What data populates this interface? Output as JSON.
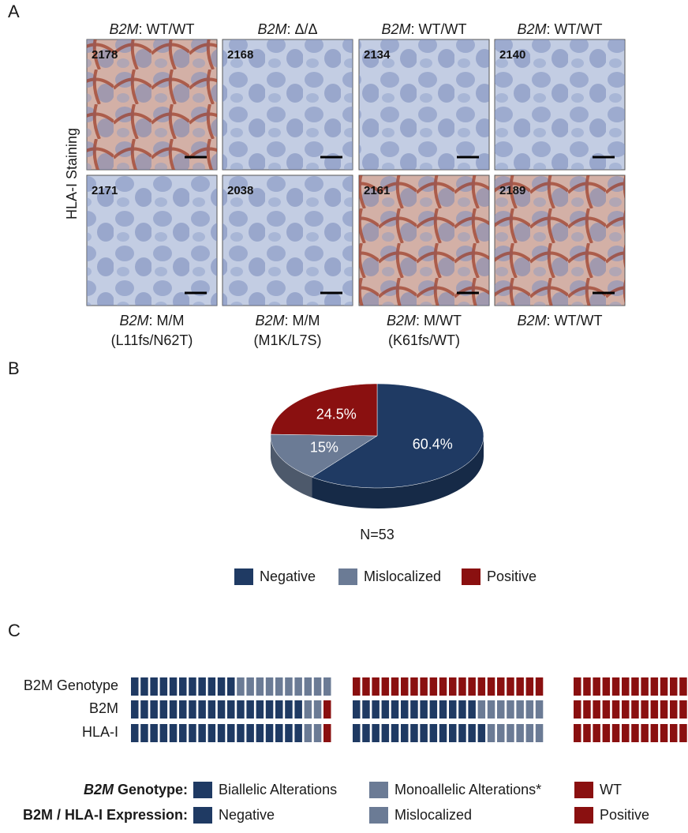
{
  "panel_a": {
    "label": "A",
    "y_label": "HLA-I Staining",
    "gene": "B2M",
    "top_labels": [
      ": WT/WT",
      ": Δ/Δ",
      ": WT/WT",
      ": WT/WT"
    ],
    "top_samples": [
      "2178",
      "2168",
      "2134",
      "2140"
    ],
    "bottom_samples": [
      "2171",
      "2038",
      "2161",
      "2189"
    ],
    "bottom_labels": [
      ": M/M",
      ": M/M",
      ": M/WT",
      ": WT/WT"
    ],
    "bottom_mutations": [
      "(L11fs/N62T)",
      "(M1K/L7S)",
      "(K61fs/WT)",
      null
    ]
  },
  "panel_b_label": "B",
  "chart_data": {
    "type": "pie",
    "categories": [
      "Negative",
      "Mislocalized",
      "Positive"
    ],
    "values": [
      60.4,
      15,
      24.5
    ],
    "value_labels": [
      "60.4%",
      "15%",
      "24.5%"
    ],
    "colors": [
      "#1f3a63",
      "#6b7b95",
      "#8a1010"
    ],
    "annotation": "N=53"
  },
  "panel_c": {
    "label": "C",
    "rows": [
      {
        "label": "B2M Genotype",
        "groups": [
          [
            11,
            10,
            0
          ],
          [
            0,
            0,
            20
          ],
          [
            0,
            0,
            12
          ]
        ]
      },
      {
        "label": "B2M",
        "groups": [
          [
            18,
            2,
            1
          ],
          [
            13,
            7,
            0
          ],
          [
            0,
            0,
            12
          ]
        ]
      },
      {
        "label": "HLA-I",
        "groups": [
          [
            18,
            2,
            1
          ],
          [
            14,
            6,
            0
          ],
          [
            0,
            0,
            12
          ]
        ]
      }
    ],
    "colors": [
      "#1f3a63",
      "#6b7b95",
      "#8a1010"
    ],
    "genotype_legend": {
      "gene": "B2M",
      "title": " Genotype:",
      "items": [
        "Biallelic Alterations",
        "Monoallelic Alterations*",
        "WT"
      ]
    },
    "expression_legend": {
      "title": "B2M / HLA-I Expression:",
      "items": [
        "Negative",
        "Mislocalized",
        "Positive"
      ]
    }
  }
}
